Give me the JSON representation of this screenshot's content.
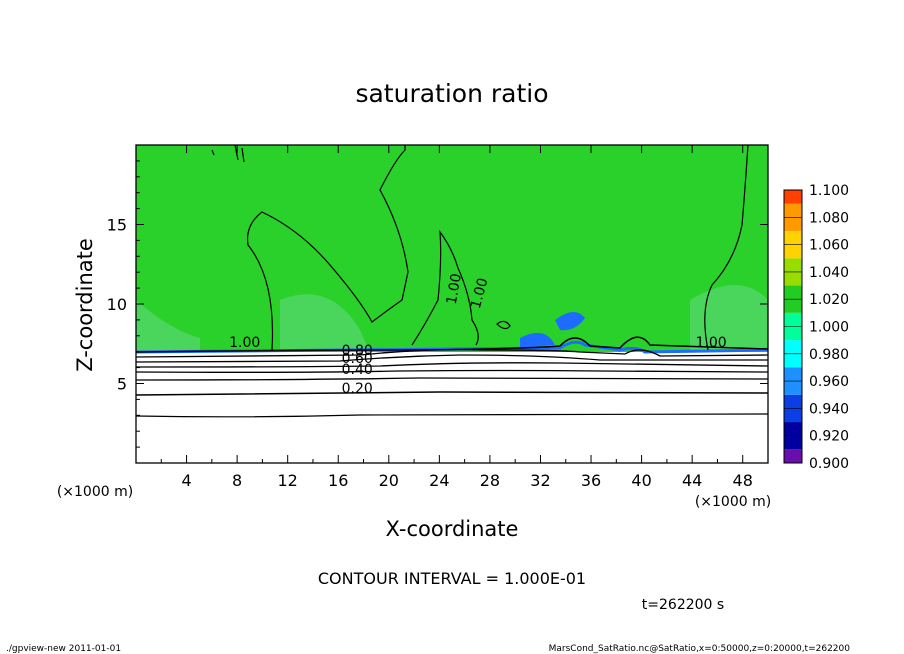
{
  "chart_data": {
    "type": "heatmap",
    "title": "saturation ratio",
    "xlabel": "X-coordinate",
    "ylabel": "Z-coordinate",
    "x_unit": "(×1000 m)",
    "z_unit": "(×1000 m)",
    "xlim": [
      0,
      50
    ],
    "ylim": [
      0,
      20
    ],
    "x_ticks": [
      4,
      8,
      12,
      16,
      20,
      24,
      28,
      32,
      36,
      40,
      44,
      48
    ],
    "y_ticks": [
      5,
      10,
      15
    ],
    "contour_interval_text": "CONTOUR INTERVAL = 1.000E-01",
    "contour_labels": [
      "1.00",
      "1.00",
      "1.00",
      "1.00",
      "0.80",
      "0.60",
      "0.40",
      "0.20"
    ],
    "colorbar": {
      "levels": [
        "0.900",
        "0.920",
        "0.940",
        "0.960",
        "0.980",
        "1.000",
        "1.020",
        "1.040",
        "1.060",
        "1.080",
        "1.100"
      ],
      "colors": [
        "#6a0dad",
        "#0000a0",
        "#0a3fe6",
        "#1e90ff",
        "#00ffff",
        "#00ff99",
        "#22cc22",
        "#99dd00",
        "#ffd200",
        "#ff9900",
        "#ff4000",
        "#ff9a9a"
      ]
    },
    "field_colors": {
      "upper": "#2ad12a",
      "shade": "#59d972",
      "dry": "#ffffff",
      "edge": "#1e6cff"
    },
    "time_text": "t=262200 s"
  },
  "footer": {
    "left": "./gpview-new  2011-01-01",
    "right": "MarsCond_SatRatio.nc@SatRatio,x=0:50000,z=0:20000,t=262200"
  }
}
